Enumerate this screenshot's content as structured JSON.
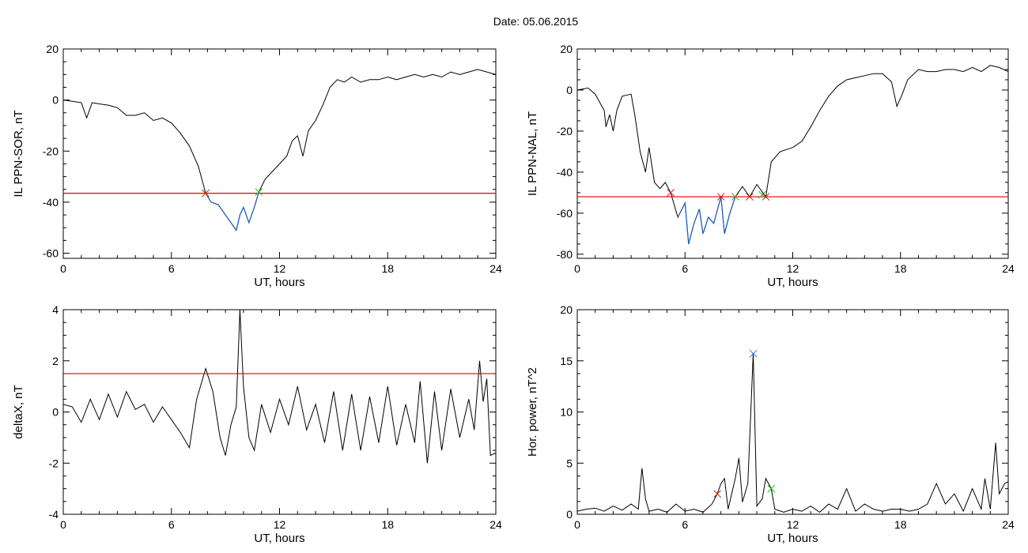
{
  "title": "Date:  05.06.2015",
  "colors": {
    "data": "#000000",
    "threshold": "#e00000",
    "below": "#1f5fbf",
    "mark_red": "#cc2200",
    "mark_green": "#22bb22",
    "mark_blue": "#2277dd"
  },
  "chart_data": [
    {
      "type": "line",
      "xlabel": "UT, hours",
      "ylabel": "IL PPN-SOR, nT",
      "xlim": [
        0,
        24
      ],
      "ylim": [
        -62,
        20
      ],
      "xticks": [
        0,
        6,
        12,
        18,
        24
      ],
      "yticks": [
        20,
        0,
        -20,
        -40,
        -60
      ],
      "threshold": -36.5,
      "series": [
        {
          "values": [
            [
              0,
              0
            ],
            [
              0.5,
              -0.5
            ],
            [
              1,
              -1
            ],
            [
              1.3,
              -7
            ],
            [
              1.6,
              -1
            ],
            [
              2,
              -1.5
            ],
            [
              2.5,
              -2
            ],
            [
              3,
              -3
            ],
            [
              3.5,
              -6
            ],
            [
              4,
              -6
            ],
            [
              4.5,
              -5
            ],
            [
              5,
              -8
            ],
            [
              5.5,
              -7
            ],
            [
              6,
              -9
            ],
            [
              6.5,
              -13
            ],
            [
              7,
              -18
            ],
            [
              7.5,
              -26
            ],
            [
              7.9,
              -36.5
            ],
            [
              8.2,
              -40
            ],
            [
              8.6,
              -41
            ],
            [
              9,
              -45
            ],
            [
              9.3,
              -48
            ],
            [
              9.6,
              -51
            ],
            [
              9.8,
              -45
            ],
            [
              10,
              -42
            ],
            [
              10.3,
              -48
            ],
            [
              10.6,
              -42
            ],
            [
              10.85,
              -36
            ],
            [
              11.2,
              -31
            ],
            [
              11.6,
              -28
            ],
            [
              12,
              -25
            ],
            [
              12.4,
              -22
            ],
            [
              12.7,
              -16
            ],
            [
              13,
              -14
            ],
            [
              13.3,
              -22
            ],
            [
              13.6,
              -12
            ],
            [
              14,
              -8
            ],
            [
              14.4,
              -2
            ],
            [
              14.8,
              5
            ],
            [
              15.2,
              8
            ],
            [
              15.6,
              7
            ],
            [
              16,
              9
            ],
            [
              16.5,
              7
            ],
            [
              17,
              8
            ],
            [
              17.5,
              8
            ],
            [
              18,
              9
            ],
            [
              18.5,
              8
            ],
            [
              19,
              9
            ],
            [
              19.5,
              10
            ],
            [
              20,
              9
            ],
            [
              20.5,
              10
            ],
            [
              21,
              9
            ],
            [
              21.5,
              11
            ],
            [
              22,
              10
            ],
            [
              22.5,
              11
            ],
            [
              23,
              12
            ],
            [
              23.5,
              11
            ],
            [
              24,
              10
            ]
          ]
        }
      ],
      "markers": [
        {
          "x": 7.9,
          "y": -36.5,
          "color": "#cc2200"
        },
        {
          "x": 10.85,
          "y": -36,
          "color": "#22bb22"
        }
      ]
    },
    {
      "type": "line",
      "xlabel": "UT, hours",
      "ylabel": "IL PPN-NAL, nT",
      "xlim": [
        0,
        24
      ],
      "ylim": [
        -82,
        20
      ],
      "xticks": [
        0,
        6,
        12,
        18,
        24
      ],
      "yticks": [
        20,
        0,
        -20,
        -40,
        -60,
        -80
      ],
      "threshold": -52,
      "series": [
        {
          "values": [
            [
              0,
              0
            ],
            [
              0.6,
              1
            ],
            [
              1,
              -2
            ],
            [
              1.5,
              -10
            ],
            [
              1.6,
              -18
            ],
            [
              1.8,
              -12
            ],
            [
              2,
              -20
            ],
            [
              2.2,
              -10
            ],
            [
              2.5,
              -3
            ],
            [
              3,
              -2
            ],
            [
              3.2,
              -12
            ],
            [
              3.5,
              -30
            ],
            [
              3.8,
              -40
            ],
            [
              4,
              -28
            ],
            [
              4.3,
              -45
            ],
            [
              4.6,
              -48
            ],
            [
              4.9,
              -45
            ],
            [
              5.2,
              -50
            ],
            [
              5.6,
              -62
            ],
            [
              6,
              -55
            ],
            [
              6.2,
              -75
            ],
            [
              6.5,
              -65
            ],
            [
              6.8,
              -58
            ],
            [
              7,
              -70
            ],
            [
              7.3,
              -62
            ],
            [
              7.6,
              -65
            ],
            [
              8,
              -52
            ],
            [
              8.2,
              -70
            ],
            [
              8.5,
              -60
            ],
            [
              8.8,
              -52
            ],
            [
              9.2,
              -47
            ],
            [
              9.6,
              -52
            ],
            [
              10,
              -46
            ],
            [
              10.5,
              -52
            ],
            [
              10.8,
              -35
            ],
            [
              11.3,
              -30
            ],
            [
              12,
              -28
            ],
            [
              12.5,
              -25
            ],
            [
              13,
              -18
            ],
            [
              13.5,
              -10
            ],
            [
              14,
              -3
            ],
            [
              14.5,
              2
            ],
            [
              15,
              5
            ],
            [
              15.5,
              6
            ],
            [
              16,
              7
            ],
            [
              16.5,
              8
            ],
            [
              17,
              8
            ],
            [
              17.5,
              4
            ],
            [
              17.8,
              -8
            ],
            [
              18.1,
              -2
            ],
            [
              18.4,
              5
            ],
            [
              19,
              10
            ],
            [
              19.5,
              9
            ],
            [
              20,
              9
            ],
            [
              20.5,
              10
            ],
            [
              21,
              10
            ],
            [
              21.5,
              9
            ],
            [
              22,
              11
            ],
            [
              22.5,
              9
            ],
            [
              23,
              12
            ],
            [
              23.5,
              11
            ],
            [
              24,
              9
            ]
          ]
        }
      ],
      "markers": [
        {
          "x": 5.2,
          "y": -50,
          "color": "#cc2200"
        },
        {
          "x": 8.0,
          "y": -52,
          "color": "#cc2200"
        },
        {
          "x": 8.8,
          "y": -52,
          "color": "#22bb22"
        },
        {
          "x": 9.6,
          "y": -52,
          "color": "#cc2200"
        },
        {
          "x": 10.3,
          "y": -51,
          "color": "#22bb22"
        },
        {
          "x": 10.5,
          "y": -52,
          "color": "#cc2200"
        }
      ]
    },
    {
      "type": "line",
      "xlabel": "UT, hours",
      "ylabel": "deltaX, nT",
      "xlim": [
        0,
        24
      ],
      "ylim": [
        -4,
        4
      ],
      "xticks": [
        0,
        6,
        12,
        18,
        24
      ],
      "yticks": [
        4,
        2,
        0,
        -2,
        -4
      ],
      "threshold": 1.5,
      "series": [
        {
          "values": [
            [
              0,
              0.3
            ],
            [
              0.5,
              0.2
            ],
            [
              1,
              -0.4
            ],
            [
              1.5,
              0.5
            ],
            [
              2,
              -0.3
            ],
            [
              2.5,
              0.7
            ],
            [
              3,
              -0.2
            ],
            [
              3.5,
              0.8
            ],
            [
              4,
              0.1
            ],
            [
              4.5,
              0.3
            ],
            [
              5,
              -0.4
            ],
            [
              5.5,
              0.2
            ],
            [
              6,
              -0.3
            ],
            [
              6.5,
              -0.8
            ],
            [
              7,
              -1.4
            ],
            [
              7.4,
              0.5
            ],
            [
              7.9,
              1.7
            ],
            [
              8.3,
              0.8
            ],
            [
              8.7,
              -1.0
            ],
            [
              9,
              -1.7
            ],
            [
              9.3,
              -0.5
            ],
            [
              9.6,
              0.2
            ],
            [
              9.8,
              4.0
            ],
            [
              10,
              1.0
            ],
            [
              10.3,
              -1.0
            ],
            [
              10.6,
              -1.5
            ],
            [
              11,
              0.3
            ],
            [
              11.5,
              -0.8
            ],
            [
              12,
              0.5
            ],
            [
              12.5,
              -0.5
            ],
            [
              13,
              1.0
            ],
            [
              13.5,
              -0.7
            ],
            [
              14,
              0.3
            ],
            [
              14.5,
              -1.2
            ],
            [
              15,
              0.8
            ],
            [
              15.5,
              -1.5
            ],
            [
              16,
              0.7
            ],
            [
              16.5,
              -1.5
            ],
            [
              17,
              0.6
            ],
            [
              17.5,
              -1.2
            ],
            [
              18,
              1.0
            ],
            [
              18.5,
              -1.3
            ],
            [
              19,
              0.3
            ],
            [
              19.5,
              -1.2
            ],
            [
              19.8,
              1.2
            ],
            [
              20.2,
              -2.0
            ],
            [
              20.6,
              0.8
            ],
            [
              21,
              -1.5
            ],
            [
              21.5,
              0.9
            ],
            [
              22,
              -1.0
            ],
            [
              22.5,
              0.5
            ],
            [
              22.8,
              -0.7
            ],
            [
              23.1,
              2.0
            ],
            [
              23.3,
              0.4
            ],
            [
              23.5,
              1.3
            ],
            [
              23.7,
              -1.7
            ],
            [
              24,
              -1.6
            ]
          ]
        }
      ],
      "markers": []
    },
    {
      "type": "line",
      "xlabel": "UT, hours",
      "ylabel": "Hor. power, nT^2",
      "xlim": [
        0,
        24
      ],
      "ylim": [
        0,
        20
      ],
      "xticks": [
        0,
        6,
        12,
        18,
        24
      ],
      "yticks": [
        20,
        15,
        10,
        5,
        0
      ],
      "series": [
        {
          "values": [
            [
              0,
              0.3
            ],
            [
              0.5,
              0.5
            ],
            [
              1,
              0.6
            ],
            [
              1.5,
              0.3
            ],
            [
              2,
              0.8
            ],
            [
              2.5,
              0.4
            ],
            [
              3,
              1.0
            ],
            [
              3.4,
              0.5
            ],
            [
              3.6,
              4.5
            ],
            [
              3.8,
              1.5
            ],
            [
              4,
              0.3
            ],
            [
              4.5,
              0.5
            ],
            [
              5,
              0.2
            ],
            [
              5.5,
              1.0
            ],
            [
              6,
              0.3
            ],
            [
              6.5,
              0.5
            ],
            [
              7,
              0.2
            ],
            [
              7.5,
              1.0
            ],
            [
              7.8,
              2.0
            ],
            [
              8.0,
              3.0
            ],
            [
              8.2,
              3.5
            ],
            [
              8.4,
              0.5
            ],
            [
              8.8,
              3.5
            ],
            [
              9,
              5.5
            ],
            [
              9.2,
              1.2
            ],
            [
              9.5,
              3.0
            ],
            [
              9.8,
              15.7
            ],
            [
              10,
              0.8
            ],
            [
              10.3,
              1.5
            ],
            [
              10.5,
              3.5
            ],
            [
              10.8,
              2.5
            ],
            [
              11,
              0.5
            ],
            [
              11.5,
              0.2
            ],
            [
              12,
              0.5
            ],
            [
              12.5,
              0.3
            ],
            [
              13,
              0.8
            ],
            [
              13.5,
              0.2
            ],
            [
              14,
              1.0
            ],
            [
              14.5,
              0.5
            ],
            [
              15,
              2.5
            ],
            [
              15.5,
              0.3
            ],
            [
              16,
              1.0
            ],
            [
              16.5,
              0.5
            ],
            [
              17,
              0.3
            ],
            [
              17.5,
              0.5
            ],
            [
              18,
              0.5
            ],
            [
              18.5,
              0.3
            ],
            [
              19,
              0.5
            ],
            [
              19.5,
              1.0
            ],
            [
              20,
              3.0
            ],
            [
              20.5,
              1.0
            ],
            [
              21,
              2.0
            ],
            [
              21.5,
              0.3
            ],
            [
              22,
              2.5
            ],
            [
              22.5,
              0.5
            ],
            [
              22.7,
              3.5
            ],
            [
              23,
              0.5
            ],
            [
              23.3,
              7.0
            ],
            [
              23.5,
              2.0
            ],
            [
              23.8,
              3.0
            ],
            [
              24,
              3.2
            ]
          ]
        }
      ],
      "markers": [
        {
          "x": 7.8,
          "y": 2.0,
          "color": "#cc2200"
        },
        {
          "x": 9.8,
          "y": 15.7,
          "color": "#2277dd"
        },
        {
          "x": 10.8,
          "y": 2.5,
          "color": "#22bb22"
        }
      ]
    }
  ]
}
